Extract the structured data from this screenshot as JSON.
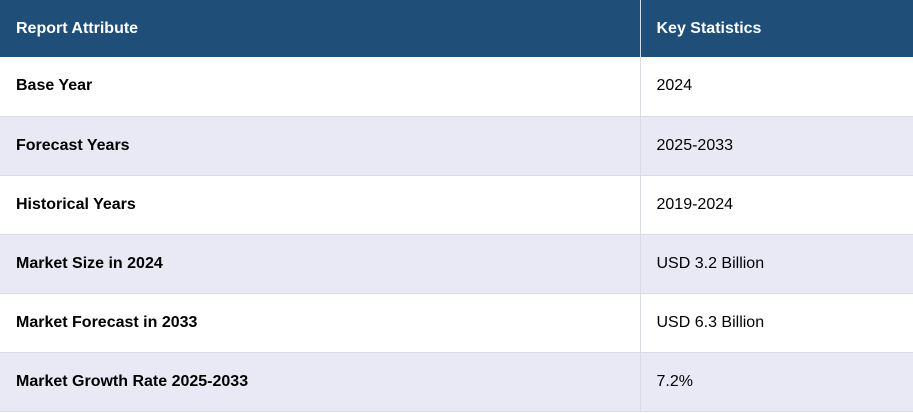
{
  "table": {
    "headers": [
      "Report Attribute",
      "Key Statistics"
    ],
    "rows": [
      {
        "attribute": "Base Year",
        "value": "2024"
      },
      {
        "attribute": "Forecast Years",
        "value": "2025-2033"
      },
      {
        "attribute": "Historical Years",
        "value": "2019-2024"
      },
      {
        "attribute": "Market Size in 2024",
        "value": "USD 3.2 Billion"
      },
      {
        "attribute": "Market Forecast in 2033",
        "value": "USD 6.3 Billion"
      },
      {
        "attribute": "Market Growth Rate 2025-2033",
        "value": "7.2%"
      }
    ]
  },
  "colors": {
    "header_bg": "#1f4e79",
    "header_text": "#ffffff",
    "stripe_bg": "#e8e9f5",
    "row_bg": "#ffffff"
  }
}
